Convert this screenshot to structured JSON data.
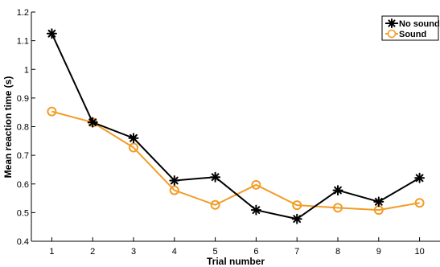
{
  "chart_data": {
    "type": "line",
    "xlabel": "Trial number",
    "ylabel": "Mean reaction time (s)",
    "x": [
      1,
      2,
      3,
      4,
      5,
      6,
      7,
      8,
      9,
      10
    ],
    "xlim": [
      0.5,
      10.5
    ],
    "ylim": [
      0.4,
      1.2
    ],
    "x_ticks": [
      "1",
      "2",
      "3",
      "4",
      "5",
      "6",
      "7",
      "8",
      "9",
      "10"
    ],
    "y_ticks": [
      0.4,
      0.5,
      0.6,
      0.7,
      0.8,
      0.9,
      1.0,
      1.1,
      1.2
    ],
    "y_tick_labels": [
      "0.4",
      "0.5",
      "0.6",
      "0.7",
      "0.8",
      "0.9",
      "1",
      "1.1",
      "1.2"
    ],
    "grid": false,
    "legend_position": "top-right",
    "series": [
      {
        "name": "No sound",
        "color": "#000000",
        "marker": "asterisk",
        "values": [
          1.125,
          0.815,
          0.76,
          0.612,
          0.624,
          0.509,
          0.478,
          0.578,
          0.538,
          0.621
        ]
      },
      {
        "name": "Sound",
        "color": "#F39C26",
        "marker": "circle",
        "values": [
          0.853,
          0.815,
          0.727,
          0.578,
          0.527,
          0.597,
          0.526,
          0.517,
          0.509,
          0.534
        ]
      }
    ]
  }
}
